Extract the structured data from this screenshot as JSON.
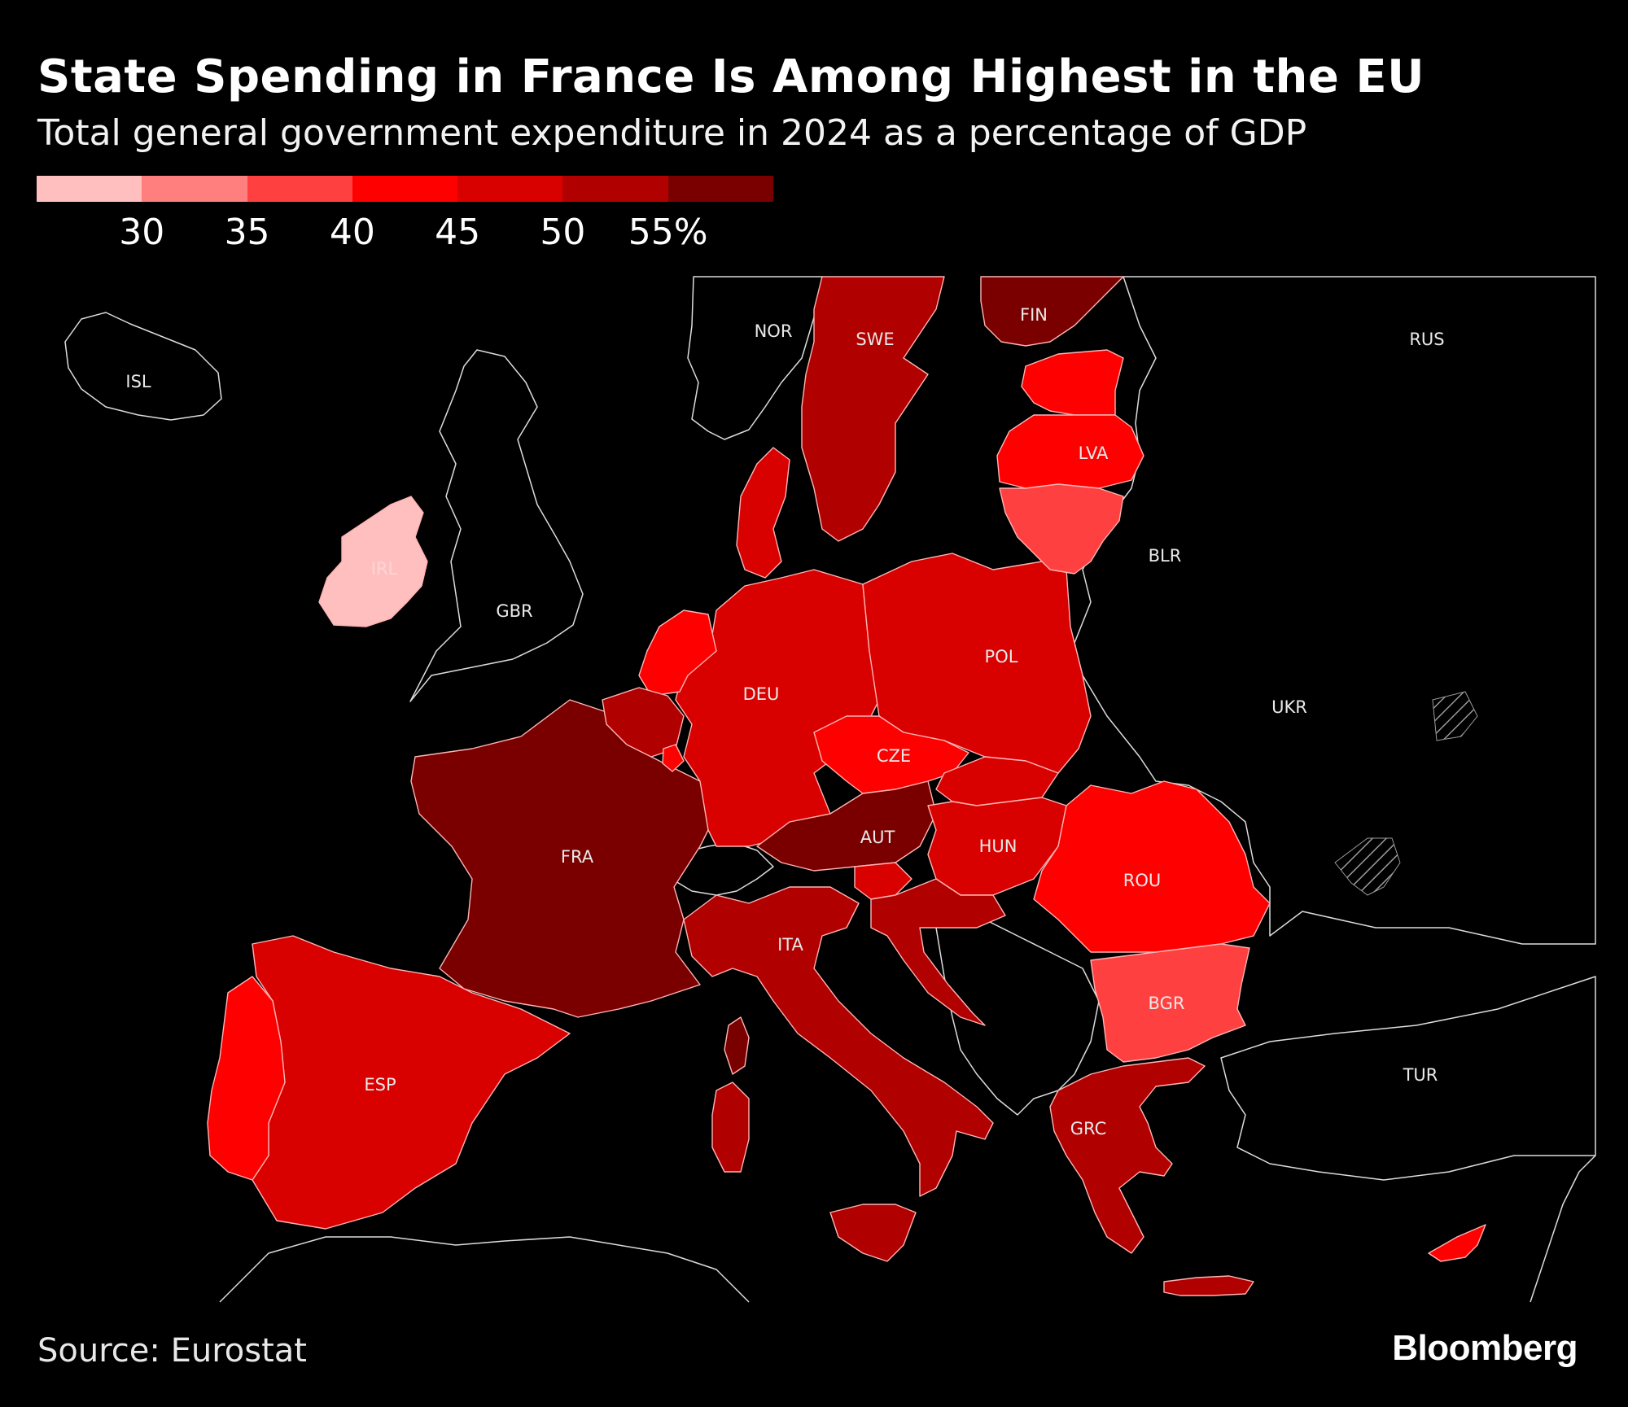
{
  "header": {
    "title": "State Spending in France Is Among Highest in the EU",
    "subtitle": "Total general government expenditure in 2024 as a percentage of GDP"
  },
  "legend": {
    "bins": [
      {
        "color": "#ffbfbf"
      },
      {
        "color": "#ff7f7f"
      },
      {
        "color": "#ff4040"
      },
      {
        "color": "#ff0000"
      },
      {
        "color": "#d90000"
      },
      {
        "color": "#b00000"
      },
      {
        "color": "#7a0000"
      }
    ],
    "ticks": [
      "30",
      "35",
      "40",
      "45",
      "50",
      "55%"
    ]
  },
  "map": {
    "labels": {
      "isl": "ISL",
      "nor": "NOR",
      "swe": "SWE",
      "fin": "FIN",
      "rus": "RUS",
      "lva": "LVA",
      "blr": "BLR",
      "gbr": "GBR",
      "irl": "IRL",
      "pol": "POL",
      "deu": "DEU",
      "ukr": "UKR",
      "cze": "CZE",
      "aut": "AUT",
      "hun": "HUN",
      "fra": "FRA",
      "rou": "ROU",
      "ita": "ITA",
      "bgr": "BGR",
      "esp": "ESP",
      "tur": "TUR",
      "grc": "GRC"
    },
    "shading": {
      "fra": "#7a0000",
      "fin": "#7a0000",
      "aut": "#7a0000",
      "swe": "#b00000",
      "ita": "#b00000",
      "grc": "#b00000",
      "bel": "#b00000",
      "hrv": "#b00000",
      "deu": "#d90000",
      "pol": "#d90000",
      "esp": "#d90000",
      "svk": "#d90000",
      "hun": "#d90000",
      "svn": "#d90000",
      "dnk": "#d90000",
      "cze": "#ff0000",
      "rou": "#ff0000",
      "nld": "#ff0000",
      "prt": "#ff0000",
      "lva": "#ff0000",
      "est": "#ff0000",
      "cyp": "#ff0000",
      "lux": "#ff0000",
      "ltu": "#ff4040",
      "bgr": "#ff4040",
      "irl": "#ffbfbf"
    }
  },
  "footer": {
    "source": "Source: Eurostat",
    "brand": "Bloomberg"
  }
}
